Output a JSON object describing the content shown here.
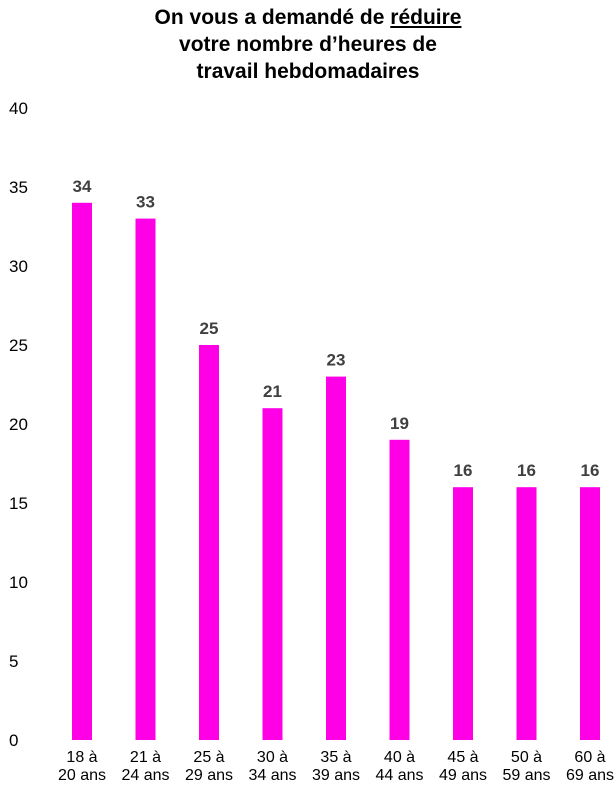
{
  "chart_data": {
    "type": "bar",
    "title": {
      "line1_pre": "On vous a demandé de ",
      "line1_underlined": "réduire",
      "line2": "votre nombre d’heures de",
      "line3": "travail hebdomadaires"
    },
    "categories": [
      [
        "18 à",
        "20 ans"
      ],
      [
        "21 à",
        "24 ans"
      ],
      [
        "25 à",
        "29 ans"
      ],
      [
        "30 à",
        "34 ans"
      ],
      [
        "35 à",
        "39 ans"
      ],
      [
        "40 à",
        "44 ans"
      ],
      [
        "45 à",
        "49 ans"
      ],
      [
        "50 à",
        "59 ans"
      ],
      [
        "60 à",
        "69 ans"
      ]
    ],
    "values": [
      34,
      33,
      25,
      21,
      23,
      19,
      16,
      16,
      16
    ],
    "data_labels": [
      "34",
      "33",
      "25",
      "21",
      "23",
      "19",
      "16",
      "16",
      "16"
    ],
    "y_ticks": [
      "0",
      "5",
      "10",
      "15",
      "20",
      "25",
      "30",
      "35",
      "40"
    ],
    "ylim": [
      0,
      40
    ],
    "grid": false,
    "legend": "none",
    "bar_color": "#ff00e6",
    "label_color": "#404040"
  }
}
